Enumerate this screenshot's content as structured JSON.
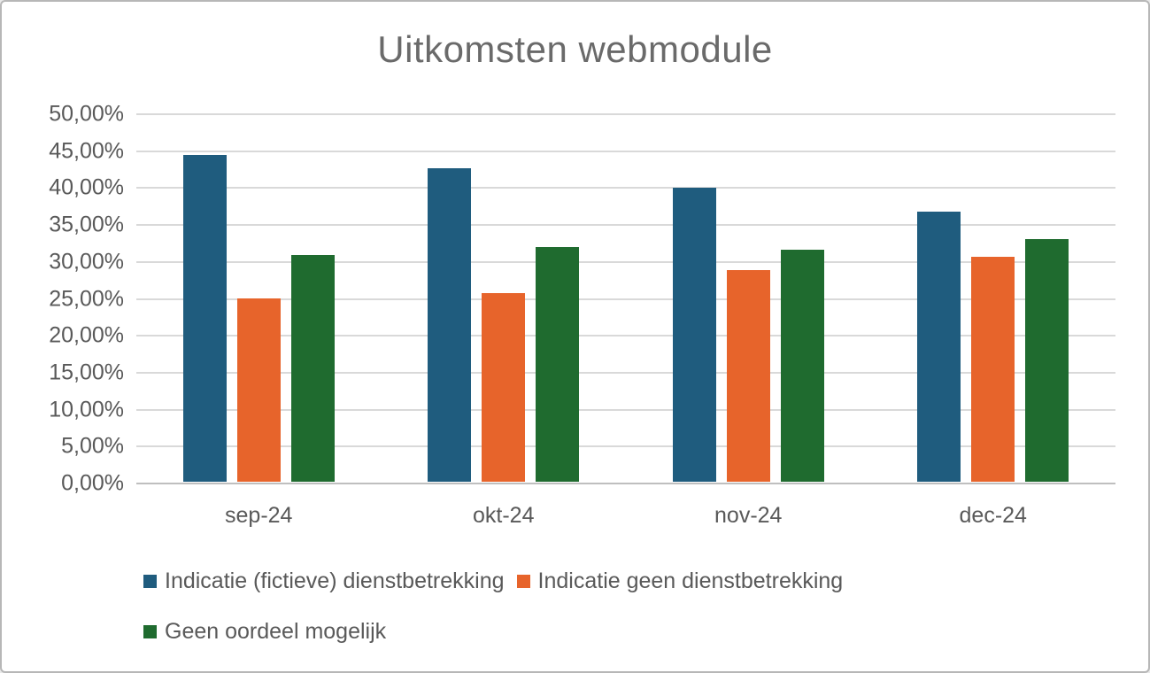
{
  "window": {
    "background": "#ffffff",
    "border_color": "#b7b7b7"
  },
  "chart_data": {
    "type": "bar",
    "title": "Uitkomsten webmodule",
    "categories": [
      "sep-24",
      "okt-24",
      "nov-24",
      "dec-24"
    ],
    "series": [
      {
        "name": "Indicatie (fictieve) dienstbetrekking",
        "color": "#1F5C7E",
        "values": [
          44.2,
          42.5,
          39.8,
          36.6
        ]
      },
      {
        "name": "Indicatie geen dienstbetrekking",
        "color": "#E7642B",
        "values": [
          24.8,
          25.5,
          28.6,
          30.4
        ]
      },
      {
        "name": "Geen oordeel mogelijk",
        "color": "#1F6B2F",
        "values": [
          30.7,
          31.8,
          31.4,
          32.8
        ]
      }
    ],
    "ylim": [
      0,
      50
    ],
    "ytick_step": 5,
    "ytick_labels": [
      "0,00%",
      "5,00%",
      "10,00%",
      "15,00%",
      "20,00%",
      "25,00%",
      "30,00%",
      "35,00%",
      "40,00%",
      "45,00%",
      "50,00%"
    ],
    "grid": true,
    "legend_position": "bottom",
    "legend_rows": [
      [
        0,
        1
      ],
      [
        2
      ]
    ],
    "colors": {
      "grid": "#D9D9D9",
      "axis": "#BFBFBF",
      "text": "#595959",
      "title": "#6A6A6A"
    }
  }
}
